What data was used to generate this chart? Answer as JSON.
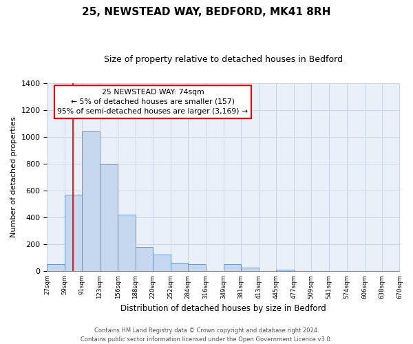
{
  "title": "25, NEWSTEAD WAY, BEDFORD, MK41 8RH",
  "subtitle": "Size of property relative to detached houses in Bedford",
  "xlabel": "Distribution of detached houses by size in Bedford",
  "ylabel": "Number of detached properties",
  "bar_left_edges": [
    27,
    59,
    91,
    123,
    156,
    188,
    220,
    252,
    284,
    316,
    349,
    381,
    413,
    445,
    477,
    509,
    541,
    574,
    606,
    638
  ],
  "bar_heights": [
    50,
    570,
    1040,
    795,
    420,
    180,
    125,
    62,
    50,
    0,
    50,
    25,
    0,
    10,
    0,
    0,
    0,
    0,
    0,
    0
  ],
  "bar_widths": [
    32,
    32,
    32,
    33,
    32,
    32,
    32,
    32,
    32,
    33,
    32,
    32,
    32,
    32,
    32,
    32,
    33,
    32,
    32,
    32
  ],
  "tick_labels": [
    "27sqm",
    "59sqm",
    "91sqm",
    "123sqm",
    "156sqm",
    "188sqm",
    "220sqm",
    "252sqm",
    "284sqm",
    "316sqm",
    "349sqm",
    "381sqm",
    "413sqm",
    "445sqm",
    "477sqm",
    "509sqm",
    "541sqm",
    "574sqm",
    "606sqm",
    "638sqm",
    "670sqm"
  ],
  "bar_color": "#c5d8f0",
  "bar_edge_color": "#5b8cc8",
  "grid_color": "#c8d4e8",
  "bg_color": "#eaf0f8",
  "red_line_x": 74,
  "annotation_line1": "25 NEWSTEAD WAY: 74sqm",
  "annotation_line2": "← 5% of detached houses are smaller (157)",
  "annotation_line3": "95% of semi-detached houses are larger (3,169) →",
  "ylim": [
    0,
    1400
  ],
  "yticks": [
    0,
    200,
    400,
    600,
    800,
    1000,
    1200,
    1400
  ],
  "xlim_min": 27,
  "xlim_max": 670,
  "footer_line1": "Contains HM Land Registry data © Crown copyright and database right 2024.",
  "footer_line2": "Contains public sector information licensed under the Open Government Licence v3.0."
}
